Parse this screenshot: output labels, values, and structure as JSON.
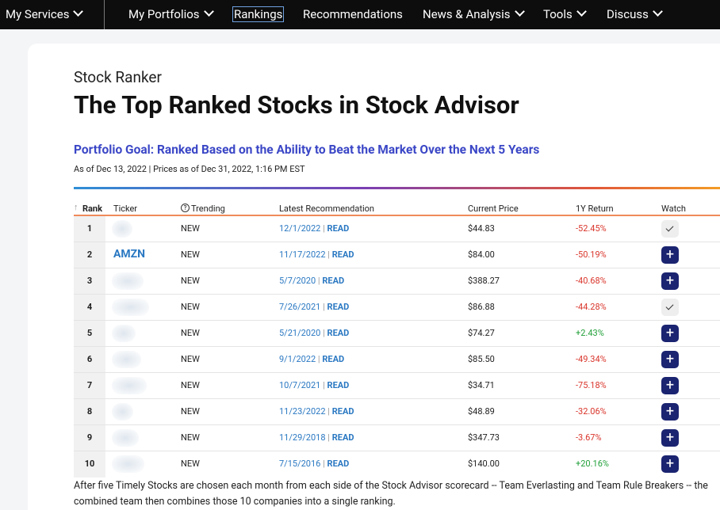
{
  "nav": {
    "items": [
      "My Services",
      "My Portfolios",
      "Rankings",
      "Recommendations",
      "News & Analysis",
      "Tools",
      "Discuss"
    ]
  },
  "header": {
    "eyebrow": "Stock Ranker",
    "title": "The Top Ranked Stocks in Stock Advisor",
    "goal": "Portfolio Goal: Ranked Based on the Ability to Beat the Market Over the Next 5 Years",
    "asof": "As of Dec 13, 2022 | Prices as of Dec 31, 2022, 1:16 PM EST"
  },
  "table": {
    "columns": [
      "Rank",
      "Ticker",
      "Trending",
      "Latest Recommendation",
      "Current Price",
      "1Y Return",
      "Watch"
    ],
    "read_label": "READ",
    "rows": [
      {
        "rank": "1",
        "ticker": null,
        "trending": "NEW",
        "date": "12/1/2022",
        "price": "$44.83",
        "return": "-52.45%",
        "watching": true
      },
      {
        "rank": "2",
        "ticker": "AMZN",
        "trending": "NEW",
        "date": "11/17/2022",
        "price": "$84.00",
        "return": "-50.19%",
        "watching": false
      },
      {
        "rank": "3",
        "ticker": null,
        "trending": "NEW",
        "date": "5/7/2020",
        "price": "$388.27",
        "return": "-40.68%",
        "watching": false
      },
      {
        "rank": "4",
        "ticker": null,
        "trending": "NEW",
        "date": "7/26/2021",
        "price": "$86.88",
        "return": "-44.28%",
        "watching": true
      },
      {
        "rank": "5",
        "ticker": null,
        "trending": "NEW",
        "date": "5/21/2020",
        "price": "$74.27",
        "return": "+2.43%",
        "watching": false
      },
      {
        "rank": "6",
        "ticker": null,
        "trending": "NEW",
        "date": "9/1/2022",
        "price": "$85.50",
        "return": "-49.34%",
        "watching": false
      },
      {
        "rank": "7",
        "ticker": null,
        "trending": "NEW",
        "date": "10/7/2021",
        "price": "$34.71",
        "return": "-75.18%",
        "watching": false
      },
      {
        "rank": "8",
        "ticker": null,
        "trending": "NEW",
        "date": "11/23/2022",
        "price": "$48.89",
        "return": "-32.06%",
        "watching": false
      },
      {
        "rank": "9",
        "ticker": null,
        "trending": "NEW",
        "date": "11/29/2018",
        "price": "$347.73",
        "return": "-3.67%",
        "watching": false
      },
      {
        "rank": "10",
        "ticker": null,
        "trending": "NEW",
        "date": "7/15/2016",
        "price": "$140.00",
        "return": "+20.16%",
        "watching": false
      }
    ]
  },
  "footer": {
    "note": "After five Timely Stocks are chosen each month from each side of the Stock Advisor scorecard -- Team Everlasting and Team Rule Breakers -- the combined team then combines those 10 companies into a single ranking."
  }
}
